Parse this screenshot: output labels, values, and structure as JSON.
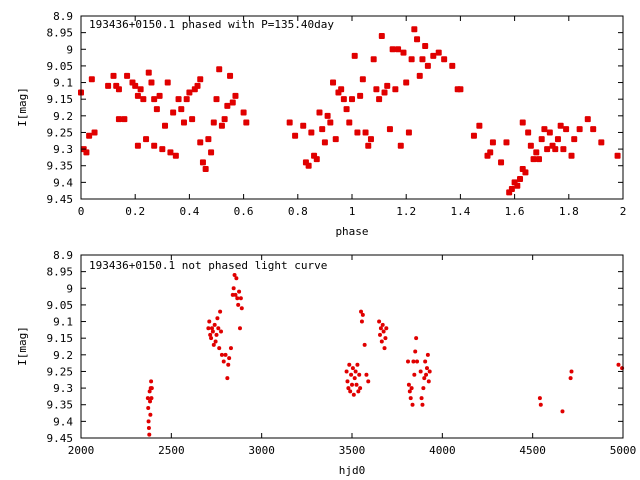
{
  "chart_data": [
    {
      "type": "scatter",
      "title": "193436+0150.1 phased with P=135.40day",
      "xlabel": "phase",
      "ylabel": "I[mag]",
      "xlim": [
        0,
        2
      ],
      "ylim": [
        8.9,
        9.45
      ],
      "y_inverted": true,
      "marker_color": "#e00000",
      "x_ticks": [
        "0",
        "0.2",
        "0.4",
        "0.6",
        "0.8",
        "1",
        "1.2",
        "1.4",
        "1.6",
        "1.8",
        "2"
      ],
      "y_ticks": [
        "8.9",
        "8.95",
        "9",
        "9.05",
        "9.1",
        "9.15",
        "9.2",
        "9.25",
        "9.3",
        "9.35",
        "9.4",
        "9.45"
      ],
      "points": [
        [
          0.0,
          9.13
        ],
        [
          0.01,
          9.3
        ],
        [
          0.02,
          9.31
        ],
        [
          0.03,
          9.26
        ],
        [
          0.04,
          9.09
        ],
        [
          0.05,
          9.25
        ],
        [
          0.1,
          9.11
        ],
        [
          0.12,
          9.08
        ],
        [
          0.13,
          9.11
        ],
        [
          0.14,
          9.12
        ],
        [
          0.14,
          9.21
        ],
        [
          0.16,
          9.21
        ],
        [
          0.17,
          9.08
        ],
        [
          0.19,
          9.1
        ],
        [
          0.2,
          9.11
        ],
        [
          0.21,
          9.14
        ],
        [
          0.21,
          9.29
        ],
        [
          0.22,
          9.12
        ],
        [
          0.23,
          9.15
        ],
        [
          0.24,
          9.27
        ],
        [
          0.25,
          9.07
        ],
        [
          0.26,
          9.1
        ],
        [
          0.27,
          9.15
        ],
        [
          0.27,
          9.29
        ],
        [
          0.28,
          9.18
        ],
        [
          0.29,
          9.14
        ],
        [
          0.3,
          9.3
        ],
        [
          0.31,
          9.23
        ],
        [
          0.32,
          9.1
        ],
        [
          0.33,
          9.31
        ],
        [
          0.34,
          9.19
        ],
        [
          0.35,
          9.32
        ],
        [
          0.36,
          9.15
        ],
        [
          0.37,
          9.18
        ],
        [
          0.38,
          9.22
        ],
        [
          0.39,
          9.15
        ],
        [
          0.4,
          9.13
        ],
        [
          0.41,
          9.21
        ],
        [
          0.42,
          9.12
        ],
        [
          0.43,
          9.11
        ],
        [
          0.44,
          9.09
        ],
        [
          0.44,
          9.28
        ],
        [
          0.45,
          9.34
        ],
        [
          0.46,
          9.36
        ],
        [
          0.47,
          9.27
        ],
        [
          0.48,
          9.31
        ],
        [
          0.49,
          9.22
        ],
        [
          0.5,
          9.15
        ],
        [
          0.51,
          9.06
        ],
        [
          0.52,
          9.23
        ],
        [
          0.53,
          9.21
        ],
        [
          0.54,
          9.17
        ],
        [
          0.55,
          9.08
        ],
        [
          0.56,
          9.16
        ],
        [
          0.57,
          9.14
        ],
        [
          0.6,
          9.19
        ],
        [
          0.61,
          9.22
        ],
        [
          0.77,
          9.22
        ],
        [
          0.79,
          9.26
        ],
        [
          0.82,
          9.23
        ],
        [
          0.83,
          9.34
        ],
        [
          0.84,
          9.35
        ],
        [
          0.85,
          9.25
        ],
        [
          0.86,
          9.32
        ],
        [
          0.87,
          9.33
        ],
        [
          0.88,
          9.19
        ],
        [
          0.89,
          9.24
        ],
        [
          0.9,
          9.28
        ],
        [
          0.91,
          9.2
        ],
        [
          0.92,
          9.22
        ],
        [
          0.93,
          9.1
        ],
        [
          0.94,
          9.27
        ],
        [
          0.95,
          9.13
        ],
        [
          0.96,
          9.12
        ],
        [
          0.97,
          9.15
        ],
        [
          0.98,
          9.18
        ],
        [
          0.99,
          9.22
        ],
        [
          1.0,
          9.15
        ],
        [
          1.01,
          9.02
        ],
        [
          1.02,
          9.25
        ],
        [
          1.03,
          9.14
        ],
        [
          1.04,
          9.09
        ],
        [
          1.05,
          9.25
        ],
        [
          1.06,
          9.29
        ],
        [
          1.07,
          9.27
        ],
        [
          1.08,
          9.03
        ],
        [
          1.09,
          9.12
        ],
        [
          1.1,
          9.15
        ],
        [
          1.11,
          8.96
        ],
        [
          1.12,
          9.13
        ],
        [
          1.13,
          9.11
        ],
        [
          1.14,
          9.24
        ],
        [
          1.15,
          9.0
        ],
        [
          1.16,
          9.12
        ],
        [
          1.17,
          9.0
        ],
        [
          1.18,
          9.29
        ],
        [
          1.19,
          9.01
        ],
        [
          1.2,
          9.1
        ],
        [
          1.21,
          9.25
        ],
        [
          1.22,
          9.03
        ],
        [
          1.23,
          8.94
        ],
        [
          1.24,
          8.97
        ],
        [
          1.25,
          9.08
        ],
        [
          1.26,
          9.03
        ],
        [
          1.27,
          8.99
        ],
        [
          1.28,
          9.05
        ],
        [
          1.3,
          9.02
        ],
        [
          1.32,
          9.01
        ],
        [
          1.34,
          9.03
        ],
        [
          1.37,
          9.05
        ],
        [
          1.39,
          9.12
        ],
        [
          1.4,
          9.12
        ],
        [
          1.45,
          9.26
        ],
        [
          1.47,
          9.23
        ],
        [
          1.5,
          9.32
        ],
        [
          1.51,
          9.31
        ],
        [
          1.52,
          9.28
        ],
        [
          1.55,
          9.34
        ],
        [
          1.57,
          9.28
        ],
        [
          1.58,
          9.43
        ],
        [
          1.59,
          9.42
        ],
        [
          1.6,
          9.4
        ],
        [
          1.61,
          9.41
        ],
        [
          1.62,
          9.39
        ],
        [
          1.63,
          9.36
        ],
        [
          1.63,
          9.22
        ],
        [
          1.64,
          9.37
        ],
        [
          1.65,
          9.25
        ],
        [
          1.66,
          9.29
        ],
        [
          1.67,
          9.33
        ],
        [
          1.68,
          9.31
        ],
        [
          1.69,
          9.33
        ],
        [
          1.7,
          9.27
        ],
        [
          1.71,
          9.24
        ],
        [
          1.72,
          9.3
        ],
        [
          1.73,
          9.25
        ],
        [
          1.74,
          9.29
        ],
        [
          1.75,
          9.3
        ],
        [
          1.76,
          9.27
        ],
        [
          1.77,
          9.23
        ],
        [
          1.78,
          9.3
        ],
        [
          1.79,
          9.24
        ],
        [
          1.81,
          9.32
        ],
        [
          1.82,
          9.27
        ],
        [
          1.84,
          9.24
        ],
        [
          1.87,
          9.21
        ],
        [
          1.89,
          9.24
        ],
        [
          1.92,
          9.28
        ],
        [
          1.98,
          9.32
        ]
      ]
    },
    {
      "type": "scatter",
      "title": "193436+0150.1 not phased light curve",
      "xlabel": "hjd0",
      "ylabel": "I[mag]",
      "xlim": [
        2000,
        5000
      ],
      "ylim": [
        8.9,
        9.45
      ],
      "y_inverted": true,
      "marker_color": "#e00000",
      "x_ticks": [
        "2000",
        "2500",
        "3000",
        "3500",
        "4000",
        "4500",
        "5000"
      ],
      "y_ticks": [
        "8.9",
        "8.95",
        "9",
        "9.05",
        "9.1",
        "9.15",
        "9.2",
        "9.25",
        "9.3",
        "9.35",
        "9.4",
        "9.45"
      ],
      "points": [
        [
          2370,
          9.33
        ],
        [
          2372,
          9.36
        ],
        [
          2374,
          9.4
        ],
        [
          2376,
          9.42
        ],
        [
          2378,
          9.44
        ],
        [
          2380,
          9.31
        ],
        [
          2382,
          9.34
        ],
        [
          2384,
          9.38
        ],
        [
          2386,
          9.3
        ],
        [
          2388,
          9.28
        ],
        [
          2390,
          9.33
        ],
        [
          2392,
          9.3
        ],
        [
          2705,
          9.12
        ],
        [
          2710,
          9.1
        ],
        [
          2715,
          9.14
        ],
        [
          2720,
          9.15
        ],
        [
          2725,
          9.12
        ],
        [
          2730,
          9.13
        ],
        [
          2735,
          9.17
        ],
        [
          2740,
          9.11
        ],
        [
          2745,
          9.16
        ],
        [
          2750,
          9.14
        ],
        [
          2755,
          9.09
        ],
        [
          2760,
          9.12
        ],
        [
          2765,
          9.18
        ],
        [
          2770,
          9.07
        ],
        [
          2775,
          9.13
        ],
        [
          2780,
          9.2
        ],
        [
          2790,
          9.22
        ],
        [
          2800,
          9.2
        ],
        [
          2810,
          9.27
        ],
        [
          2815,
          9.23
        ],
        [
          2820,
          9.21
        ],
        [
          2830,
          9.18
        ],
        [
          2840,
          9.02
        ],
        [
          2845,
          9.0
        ],
        [
          2850,
          8.96
        ],
        [
          2855,
          9.02
        ],
        [
          2860,
          8.97
        ],
        [
          2865,
          9.03
        ],
        [
          2870,
          9.05
        ],
        [
          2875,
          9.01
        ],
        [
          2880,
          9.12
        ],
        [
          2885,
          9.03
        ],
        [
          2890,
          9.06
        ],
        [
          3470,
          9.25
        ],
        [
          3475,
          9.28
        ],
        [
          3480,
          9.3
        ],
        [
          3485,
          9.23
        ],
        [
          3490,
          9.31
        ],
        [
          3495,
          9.26
        ],
        [
          3500,
          9.29
        ],
        [
          3505,
          9.24
        ],
        [
          3510,
          9.32
        ],
        [
          3515,
          9.27
        ],
        [
          3520,
          9.25
        ],
        [
          3525,
          9.29
        ],
        [
          3530,
          9.23
        ],
        [
          3535,
          9.31
        ],
        [
          3540,
          9.26
        ],
        [
          3545,
          9.3
        ],
        [
          3550,
          9.07
        ],
        [
          3555,
          9.1
        ],
        [
          3560,
          9.08
        ],
        [
          3570,
          9.17
        ],
        [
          3580,
          9.26
        ],
        [
          3590,
          9.28
        ],
        [
          3650,
          9.1
        ],
        [
          3655,
          9.14
        ],
        [
          3660,
          9.12
        ],
        [
          3665,
          9.16
        ],
        [
          3670,
          9.11
        ],
        [
          3675,
          9.13
        ],
        [
          3680,
          9.18
        ],
        [
          3685,
          9.15
        ],
        [
          3690,
          9.12
        ],
        [
          3810,
          9.22
        ],
        [
          3815,
          9.29
        ],
        [
          3820,
          9.31
        ],
        [
          3825,
          9.33
        ],
        [
          3830,
          9.3
        ],
        [
          3835,
          9.35
        ],
        [
          3840,
          9.22
        ],
        [
          3845,
          9.26
        ],
        [
          3850,
          9.19
        ],
        [
          3855,
          9.15
        ],
        [
          3860,
          9.22
        ],
        [
          3880,
          9.25
        ],
        [
          3885,
          9.33
        ],
        [
          3890,
          9.35
        ],
        [
          3895,
          9.3
        ],
        [
          3900,
          9.27
        ],
        [
          3905,
          9.22
        ],
        [
          3910,
          9.26
        ],
        [
          3915,
          9.24
        ],
        [
          3920,
          9.2
        ],
        [
          3925,
          9.28
        ],
        [
          3930,
          9.25
        ],
        [
          4540,
          9.33
        ],
        [
          4545,
          9.35
        ],
        [
          4665,
          9.37
        ],
        [
          4710,
          9.27
        ],
        [
          4715,
          9.25
        ],
        [
          4975,
          9.23
        ],
        [
          4995,
          9.24
        ]
      ]
    }
  ]
}
